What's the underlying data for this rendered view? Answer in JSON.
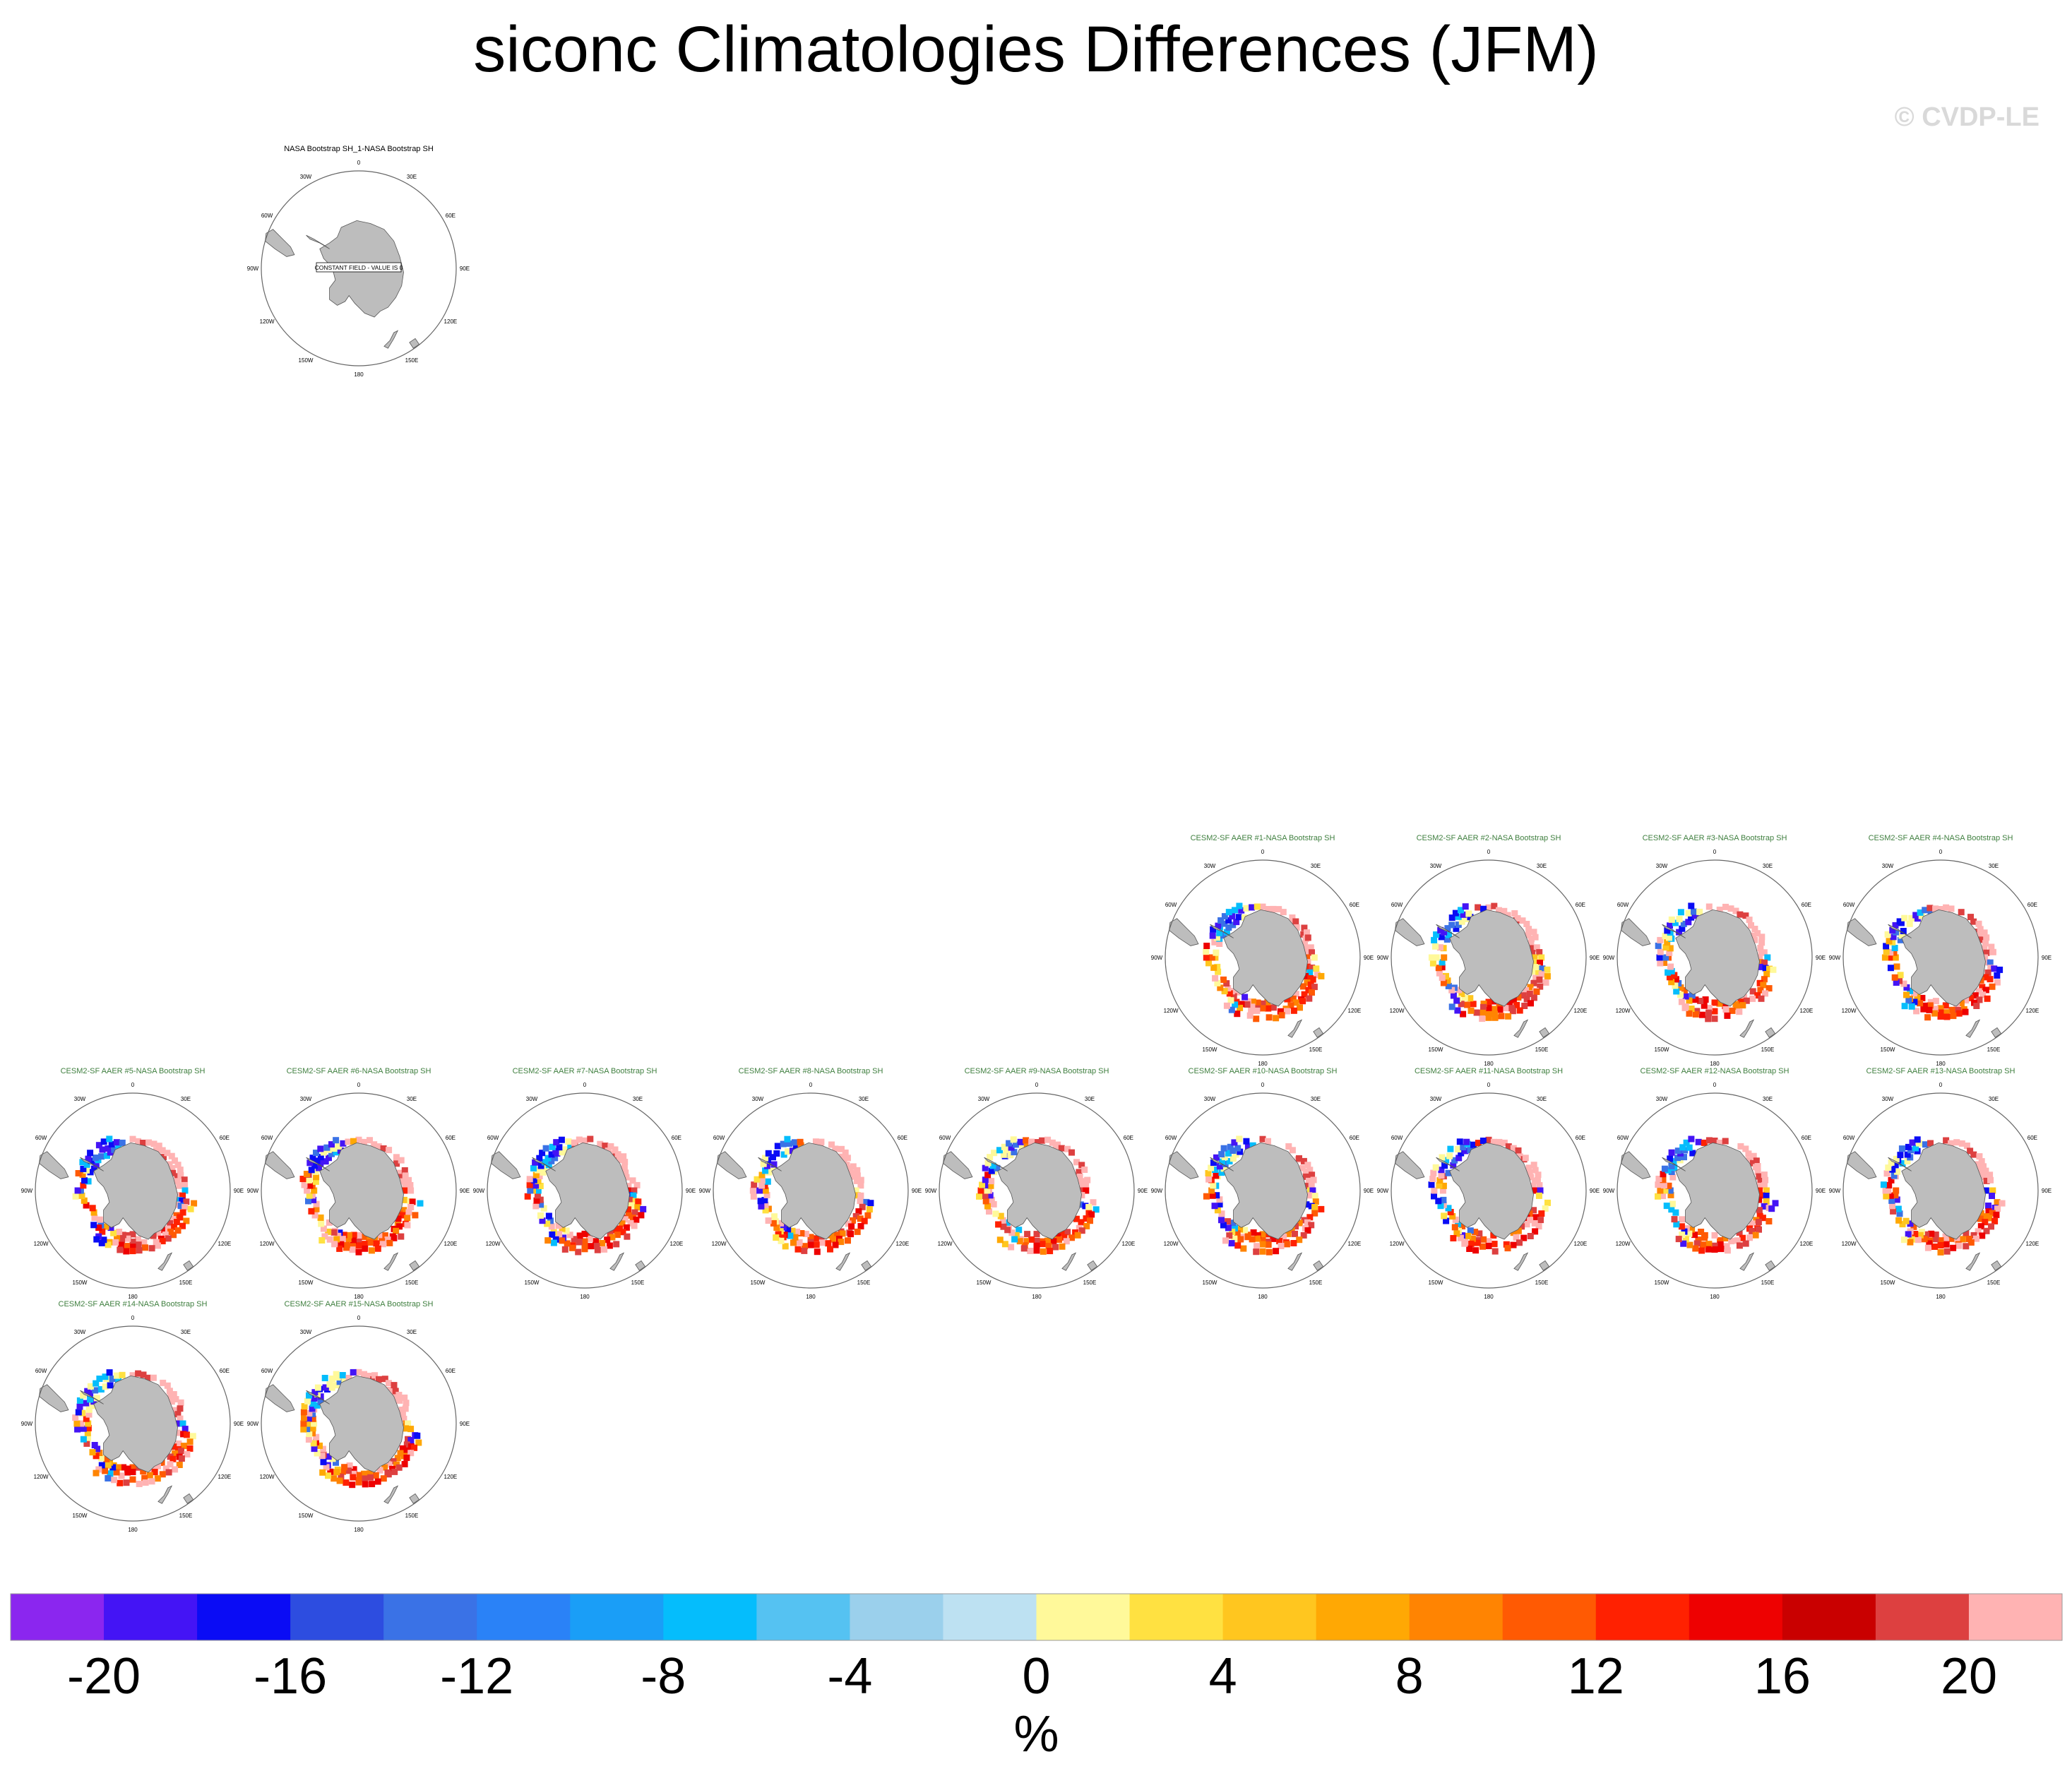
{
  "title": "siconc Climatologies Differences (JFM)",
  "watermark": "© CVDP-LE",
  "panels": [
    {
      "label": "NASA Bootstrap SH_1-NASA Bootstrap SH",
      "label_color": "#000000",
      "constant": "CONSTANT FIELD - VALUE IS 0"
    },
    {
      "label": "CESM2-SF AAER #1-NASA Bootstrap SH",
      "label_color": "#3f7f3f"
    },
    {
      "label": "CESM2-SF AAER #2-NASA Bootstrap SH",
      "label_color": "#3f7f3f"
    },
    {
      "label": "CESM2-SF AAER #3-NASA Bootstrap SH",
      "label_color": "#3f7f3f"
    },
    {
      "label": "CESM2-SF AAER #4-NASA Bootstrap SH",
      "label_color": "#3f7f3f"
    },
    {
      "label": "CESM2-SF AAER #5-NASA Bootstrap SH",
      "label_color": "#3f7f3f"
    },
    {
      "label": "CESM2-SF AAER #6-NASA Bootstrap SH",
      "label_color": "#3f7f3f"
    },
    {
      "label": "CESM2-SF AAER #7-NASA Bootstrap SH",
      "label_color": "#3f7f3f"
    },
    {
      "label": "CESM2-SF AAER #8-NASA Bootstrap SH",
      "label_color": "#3f7f3f"
    },
    {
      "label": "CESM2-SF AAER #9-NASA Bootstrap SH",
      "label_color": "#3f7f3f"
    },
    {
      "label": "CESM2-SF AAER #10-NASA Bootstrap SH",
      "label_color": "#3f7f3f"
    },
    {
      "label": "CESM2-SF AAER #11-NASA Bootstrap SH",
      "label_color": "#3f7f3f"
    },
    {
      "label": "CESM2-SF AAER #12-NASA Bootstrap SH",
      "label_color": "#3f7f3f"
    },
    {
      "label": "CESM2-SF AAER #13-NASA Bootstrap SH",
      "label_color": "#3f7f3f"
    },
    {
      "label": "CESM2-SF AAER #14-NASA Bootstrap SH",
      "label_color": "#3f7f3f"
    },
    {
      "label": "CESM2-SF AAER #15-NASA Bootstrap SH",
      "label_color": "#3f7f3f"
    }
  ],
  "map_lon_labels": [
    "0",
    "30E",
    "60E",
    "90E",
    "120E",
    "150E",
    "180",
    "150W",
    "120W",
    "90W",
    "60W",
    "30W"
  ],
  "colorbar": {
    "colors": [
      "#8b26ef",
      "#4414f5",
      "#0a0cf5",
      "#2d4de0",
      "#3a72e6",
      "#2a82f7",
      "#1a9ef7",
      "#05bdfc",
      "#55c2f2",
      "#9bd0ec",
      "#bde1f2",
      "#fff99a",
      "#ffe141",
      "#ffc61f",
      "#ffa804",
      "#ff8402",
      "#ff5a03",
      "#ff2101",
      "#ee0101",
      "#c90000",
      "#dd4040",
      "#ffb3b3"
    ],
    "tick_labels": [
      "-20",
      "-16",
      "-12",
      "-8",
      "-4",
      "0",
      "4",
      "8",
      "12",
      "16",
      "20"
    ],
    "units": "%"
  }
}
